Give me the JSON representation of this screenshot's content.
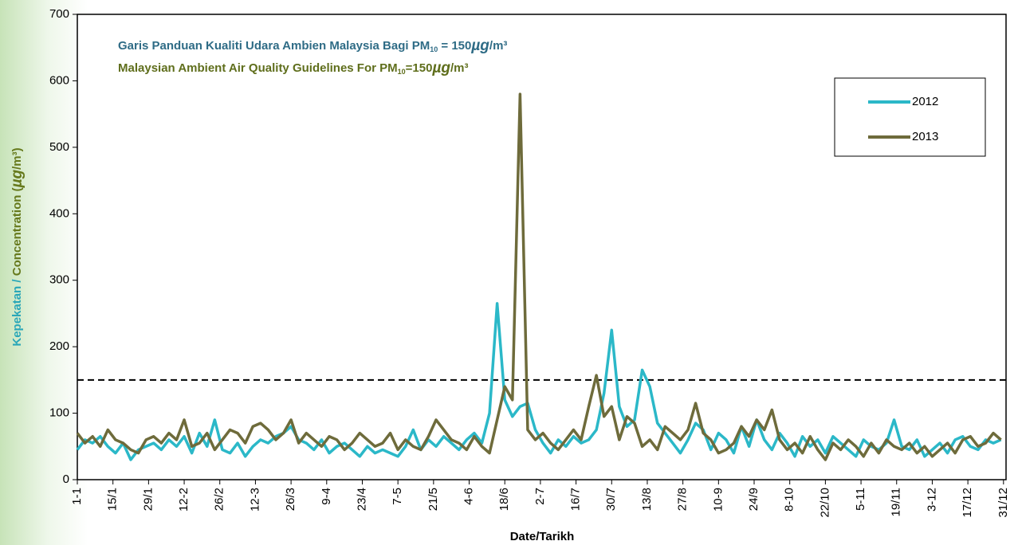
{
  "chart_data": {
    "type": "line",
    "annotations": [
      {
        "color": "#2f6c86",
        "parts": [
          {
            "text": "Garis Panduan Kualiti Udara Ambien Malaysia Bagi PM"
          },
          {
            "text": "10",
            "sub": true
          },
          {
            "text": " = 150"
          },
          {
            "text": "µg",
            "italic": true
          },
          {
            "text": "/m³"
          }
        ]
      },
      {
        "color": "#5f6e1c",
        "parts": [
          {
            "text": "Malaysian Ambient Air Quality Guidelines For PM"
          },
          {
            "text": "10",
            "sub": true
          },
          {
            "text": "=150"
          },
          {
            "text": "µg",
            "italic": true
          },
          {
            "text": "/m³"
          }
        ]
      }
    ],
    "y_label": {
      "parts": [
        {
          "text": "Kepekatan / ",
          "color": "#2aa7b8"
        },
        {
          "text": "Concentration (",
          "color": "#66791c"
        },
        {
          "text": "µg",
          "color": "#66791c",
          "italic": true
        },
        {
          "text": "/m³)",
          "color": "#66791c"
        }
      ]
    },
    "x_label": "Date/Tarikh",
    "x": [
      1,
      4,
      7,
      10,
      13,
      16,
      19,
      22,
      25,
      28,
      31,
      34,
      37,
      40,
      43,
      46,
      49,
      52,
      55,
      58,
      61,
      64,
      67,
      70,
      73,
      76,
      79,
      82,
      85,
      88,
      91,
      94,
      97,
      100,
      103,
      106,
      109,
      112,
      115,
      118,
      121,
      124,
      127,
      130,
      133,
      136,
      139,
      142,
      145,
      148,
      151,
      154,
      157,
      160,
      163,
      166,
      169,
      172,
      175,
      178,
      181,
      184,
      187,
      190,
      193,
      196,
      199,
      202,
      205,
      208,
      211,
      214,
      217,
      220,
      223,
      226,
      229,
      232,
      235,
      238,
      241,
      244,
      247,
      250,
      253,
      256,
      259,
      262,
      265,
      268,
      271,
      274,
      277,
      280,
      283,
      286,
      289,
      292,
      295,
      298,
      301,
      304,
      307,
      310,
      313,
      316,
      319,
      322,
      325,
      328,
      331,
      334,
      337,
      340,
      343,
      346,
      349,
      352,
      355,
      358,
      361,
      364
    ],
    "series": [
      {
        "name": "2012",
        "color": "#2bb8c8",
        "values": [
          45,
          60,
          55,
          65,
          50,
          40,
          55,
          30,
          45,
          50,
          55,
          45,
          60,
          50,
          65,
          40,
          70,
          50,
          90,
          45,
          40,
          55,
          35,
          50,
          60,
          55,
          65,
          70,
          80,
          60,
          55,
          45,
          60,
          40,
          50,
          55,
          45,
          35,
          50,
          40,
          45,
          40,
          35,
          50,
          75,
          45,
          60,
          50,
          65,
          55,
          45,
          60,
          70,
          55,
          100,
          265,
          120,
          95,
          110,
          115,
          75,
          55,
          40,
          60,
          50,
          65,
          55,
          60,
          75,
          130,
          225,
          110,
          80,
          90,
          165,
          140,
          85,
          70,
          55,
          40,
          60,
          85,
          75,
          45,
          70,
          60,
          40,
          80,
          50,
          90,
          60,
          45,
          70,
          55,
          35,
          65,
          50,
          60,
          40,
          65,
          55,
          45,
          35,
          60,
          50,
          45,
          55,
          90,
          50,
          45,
          60,
          35,
          45,
          55,
          40,
          60,
          65,
          50,
          45,
          60,
          55,
          60
        ]
      },
      {
        "name": "2013",
        "color": "#6e6b3b",
        "values": [
          70,
          55,
          65,
          50,
          75,
          60,
          55,
          45,
          40,
          60,
          65,
          55,
          70,
          60,
          90,
          50,
          55,
          70,
          45,
          60,
          75,
          70,
          55,
          80,
          85,
          75,
          60,
          70,
          90,
          55,
          70,
          60,
          50,
          65,
          60,
          45,
          55,
          70,
          60,
          50,
          55,
          70,
          45,
          60,
          50,
          45,
          65,
          90,
          75,
          60,
          55,
          45,
          65,
          50,
          40,
          90,
          140,
          120,
          580,
          75,
          60,
          70,
          55,
          45,
          60,
          75,
          60,
          110,
          157,
          95,
          110,
          60,
          95,
          85,
          50,
          60,
          45,
          80,
          70,
          60,
          75,
          115,
          70,
          60,
          40,
          45,
          55,
          80,
          65,
          90,
          75,
          105,
          60,
          45,
          55,
          40,
          65,
          45,
          30,
          55,
          45,
          60,
          50,
          35,
          55,
          40,
          60,
          50,
          45,
          55,
          40,
          50,
          35,
          45,
          55,
          40,
          60,
          65,
          50,
          55,
          70,
          60
        ]
      }
    ],
    "reference_line": {
      "value": 150,
      "style": "dashed"
    },
    "xlim": [
      1,
      366
    ],
    "xticks": [
      {
        "value": 1,
        "label": "1-1"
      },
      {
        "value": 15,
        "label": "15/1"
      },
      {
        "value": 29,
        "label": "29/1"
      },
      {
        "value": 43,
        "label": "12-2"
      },
      {
        "value": 57,
        "label": "26/2"
      },
      {
        "value": 71,
        "label": "12-3"
      },
      {
        "value": 85,
        "label": "26/3"
      },
      {
        "value": 99,
        "label": "9-4"
      },
      {
        "value": 113,
        "label": "23/4"
      },
      {
        "value": 127,
        "label": "7-5"
      },
      {
        "value": 141,
        "label": "21/5"
      },
      {
        "value": 155,
        "label": "4-6"
      },
      {
        "value": 169,
        "label": "18/6"
      },
      {
        "value": 183,
        "label": "2-7"
      },
      {
        "value": 197,
        "label": "16/7"
      },
      {
        "value": 211,
        "label": "30/7"
      },
      {
        "value": 225,
        "label": "13/8"
      },
      {
        "value": 239,
        "label": "27/8"
      },
      {
        "value": 253,
        "label": "10-9"
      },
      {
        "value": 267,
        "label": "24/9"
      },
      {
        "value": 281,
        "label": "8-10"
      },
      {
        "value": 295,
        "label": "22/10"
      },
      {
        "value": 309,
        "label": "5-11"
      },
      {
        "value": 323,
        "label": "19/11"
      },
      {
        "value": 337,
        "label": "3-12"
      },
      {
        "value": 351,
        "label": "17/12"
      },
      {
        "value": 365,
        "label": "31/12"
      }
    ],
    "ylim": [
      0,
      700
    ],
    "yticks": [
      0,
      100,
      200,
      300,
      400,
      500,
      600,
      700
    ],
    "grid": false,
    "legend": "top-right"
  }
}
